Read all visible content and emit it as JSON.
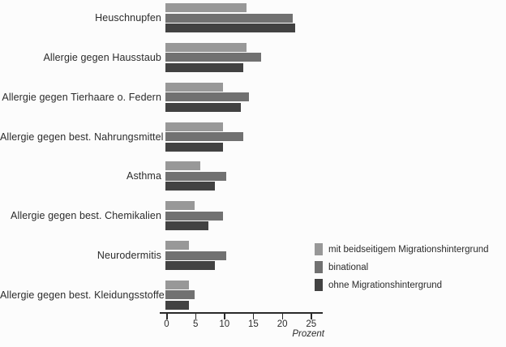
{
  "chart_data": {
    "type": "bar",
    "orientation": "horizontal",
    "title": "",
    "xlabel": "Prozent",
    "ylabel": "",
    "xlim": [
      0,
      25
    ],
    "x_ticks": [
      0,
      5,
      10,
      15,
      20,
      25
    ],
    "grid": false,
    "legend_position": "right-bottom",
    "categories": [
      "Heuschnupfen",
      "Allergie gegen Hausstaub",
      "Allergie gegen Tierhaare o. Federn",
      "Allergie gegen best. Nahrungsmittel",
      "Asthma",
      "Allergie gegen best. Chemikalien",
      "Neurodermitis",
      "Allergie gegen best. Kleidungsstoffe"
    ],
    "series": [
      {
        "name": "mit beidseitigem Migrationshintergrund",
        "color": "#989898",
        "values": [
          14,
          14,
          10,
          10,
          6,
          5,
          4,
          4
        ]
      },
      {
        "name": "binational",
        "color": "#717171",
        "values": [
          22,
          16.5,
          14.5,
          13.5,
          10.5,
          10,
          10.5,
          5
        ]
      },
      {
        "name": "ohne Migrationshintergrund",
        "color": "#424242",
        "values": [
          22.5,
          13.5,
          13,
          10,
          8.5,
          7.5,
          8.5,
          4
        ]
      }
    ],
    "colors": {
      "axis": "#2a2a2a",
      "text": "#2b2b2b",
      "background": "#fcfcfc"
    }
  }
}
